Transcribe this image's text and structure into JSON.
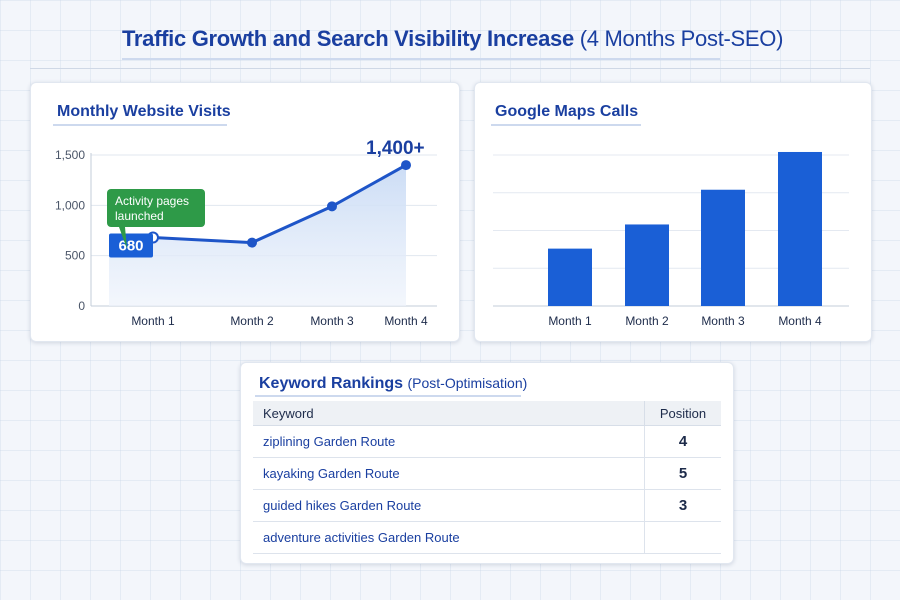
{
  "page": {
    "title_main": "Traffic Growth and Search Visibility Increase",
    "title_sub": "(4 Months Post-SEO)"
  },
  "colors": {
    "primary_blue": "#1a5fd6",
    "line_blue": "#1e55c8",
    "title_blue": "#1a3fa0",
    "callout_green": "#2e9a48",
    "area_fill": "#dbe7f8"
  },
  "chart_data": [
    {
      "type": "area",
      "title": "Monthly Website Visits",
      "categories": [
        "Month 1",
        "Month 2",
        "Month 3",
        "Month 4"
      ],
      "series": [
        {
          "values": [
            680,
            630,
            990,
            1400
          ]
        }
      ],
      "ylim": [
        0,
        1500
      ],
      "yticks": [
        0,
        500,
        1000,
        1500
      ],
      "ytick_labels": [
        "0",
        "500",
        "1,000",
        "1,500"
      ],
      "grid": true,
      "annotations": {
        "start_label": "680",
        "end_label": "1,400+",
        "callout_line1": "Activity pages",
        "callout_line2": "launched"
      }
    },
    {
      "type": "bar",
      "title": "Google Maps Calls",
      "categories": [
        "Month 1",
        "Month 2",
        "Month 3",
        "Month 4"
      ],
      "values": [
        38,
        54,
        77,
        102
      ],
      "ylim": [
        0,
        100
      ],
      "grid": true,
      "y_axis_labels_shown": false
    }
  ],
  "keywords": {
    "title": "Keyword Rankings",
    "subtitle": "(Post-Optimisation)",
    "headers": [
      "Keyword",
      "Position"
    ],
    "rows": [
      {
        "keyword": "ziplining Garden Route",
        "position": "4"
      },
      {
        "keyword": "kayaking Garden Route",
        "position": "5"
      },
      {
        "keyword": "guided hikes Garden Route",
        "position": "3"
      },
      {
        "keyword": "adventure activities Garden Route",
        "position": ""
      }
    ]
  }
}
